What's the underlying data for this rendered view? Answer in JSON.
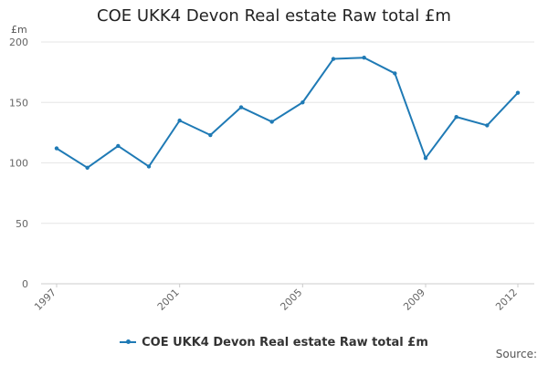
{
  "chart_data": {
    "type": "line",
    "title": "COE UKK4 Devon Real estate Raw total £m",
    "unit_label": "£m",
    "x_tick_labels": [
      "1997",
      "2001",
      "2005",
      "2009",
      "2012"
    ],
    "x": [
      1997,
      1998,
      1999,
      2000,
      2001,
      2002,
      2003,
      2004,
      2005,
      2006,
      2007,
      2008,
      2009,
      2010,
      2011,
      2012
    ],
    "series": [
      {
        "name": "COE UKK4 Devon Real estate Raw total £m",
        "values": [
          112,
          96,
          114,
          97,
          135,
          123,
          146,
          134,
          150,
          186,
          187,
          174,
          104,
          138,
          131,
          158
        ],
        "color": "#1f7ab5"
      }
    ],
    "ylim": [
      0,
      200
    ],
    "y_ticks": [
      0,
      50,
      100,
      150,
      200
    ],
    "grid": true,
    "legend_position": "bottom"
  },
  "footer": {
    "source": "Source:"
  }
}
